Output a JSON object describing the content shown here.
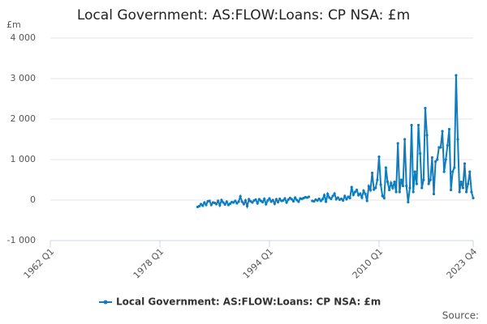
{
  "chart_data": {
    "type": "line",
    "title": "Local Government: AS:FLOW:Loans: CP NSA: £m",
    "y_unit": "£m",
    "source": "Source:",
    "categories": [
      "1983 Q3",
      "1983 Q4",
      "1984 Q1",
      "1984 Q2",
      "1984 Q3",
      "1984 Q4",
      "1985 Q1",
      "1985 Q2",
      "1985 Q3",
      "1985 Q4",
      "1986 Q1",
      "1986 Q2",
      "1986 Q3",
      "1986 Q4",
      "1987 Q1",
      "1987 Q2",
      "1987 Q3",
      "1987 Q4",
      "1988 Q1",
      "1988 Q2",
      "1988 Q3",
      "1988 Q4",
      "1989 Q1",
      "1989 Q2",
      "1989 Q3",
      "1989 Q4",
      "1990 Q1",
      "1990 Q2",
      "1990 Q3",
      "1990 Q4",
      "1991 Q1",
      "1991 Q2",
      "1991 Q3",
      "1991 Q4",
      "1992 Q1",
      "1992 Q2",
      "1992 Q3",
      "1992 Q4",
      "1993 Q1",
      "1993 Q2",
      "1993 Q3",
      "1993 Q4",
      "1994 Q1",
      "1994 Q2",
      "1994 Q3",
      "1994 Q4",
      "1995 Q1",
      "1995 Q2",
      "1995 Q3",
      "1995 Q4",
      "1996 Q1",
      "1996 Q2",
      "1996 Q3",
      "1996 Q4",
      "1997 Q1",
      "1997 Q2",
      "1997 Q3",
      "1997 Q4",
      "1998 Q1",
      "1998 Q2",
      "1998 Q3",
      "1998 Q4",
      "1999 Q1",
      "1999 Q2",
      "1999 Q3",
      "1999 Q4",
      "2000 Q1",
      "2000 Q2",
      "2000 Q3",
      "2000 Q4",
      "2001 Q1",
      "2001 Q2",
      "2001 Q3",
      "2001 Q4",
      "2002 Q1",
      "2002 Q2",
      "2002 Q3",
      "2002 Q4",
      "2003 Q1",
      "2003 Q2",
      "2003 Q3",
      "2003 Q4",
      "2004 Q1",
      "2004 Q2",
      "2004 Q3",
      "2004 Q4",
      "2005 Q1",
      "2005 Q2",
      "2005 Q3",
      "2005 Q4",
      "2006 Q1",
      "2006 Q2",
      "2006 Q3",
      "2006 Q4",
      "2007 Q1",
      "2007 Q2",
      "2007 Q3",
      "2007 Q4",
      "2008 Q1",
      "2008 Q2",
      "2008 Q3",
      "2008 Q4",
      "2009 Q1",
      "2009 Q2",
      "2009 Q3",
      "2009 Q4",
      "2010 Q1",
      "2010 Q2",
      "2010 Q3",
      "2010 Q4",
      "2011 Q1",
      "2011 Q2",
      "2011 Q3",
      "2011 Q4",
      "2012 Q1",
      "2012 Q2",
      "2012 Q3",
      "2012 Q4",
      "2013 Q1",
      "2013 Q2",
      "2013 Q3",
      "2013 Q4",
      "2014 Q1",
      "2014 Q2",
      "2014 Q3",
      "2014 Q4",
      "2015 Q1",
      "2015 Q2",
      "2015 Q3",
      "2015 Q4",
      "2016 Q1",
      "2016 Q2",
      "2016 Q3",
      "2016 Q4",
      "2017 Q1",
      "2017 Q2",
      "2017 Q3",
      "2017 Q4",
      "2018 Q1",
      "2018 Q2",
      "2018 Q3",
      "2018 Q4",
      "2019 Q1",
      "2019 Q2",
      "2019 Q3",
      "2019 Q4",
      "2020 Q1",
      "2020 Q2",
      "2020 Q3",
      "2020 Q4",
      "2021 Q1",
      "2021 Q2",
      "2021 Q3",
      "2021 Q4",
      "2022 Q1",
      "2022 Q2",
      "2022 Q3",
      "2022 Q4",
      "2023 Q1",
      "2023 Q2",
      "2023 Q3",
      "2023 Q4"
    ],
    "series": [
      {
        "name": "Local Government: AS:FLOW:Loans: CP NSA: £m",
        "color": "#0f7cbf",
        "values": [
          -170,
          -150,
          -100,
          -140,
          -60,
          -120,
          -30,
          -20,
          -120,
          -60,
          -70,
          -100,
          -20,
          -130,
          0,
          -60,
          -110,
          -40,
          -120,
          -90,
          -50,
          -60,
          -20,
          -80,
          -40,
          90,
          -40,
          -100,
          -10,
          -150,
          20,
          -30,
          -60,
          -10,
          10,
          -80,
          20,
          -20,
          -50,
          30,
          -100,
          -10,
          40,
          -40,
          0,
          -90,
          20,
          -50,
          30,
          -20,
          -10,
          40,
          -60,
          10,
          50,
          20,
          -30,
          60,
          0,
          -40,
          40,
          30,
          50,
          70,
          60,
          80,
          null,
          -20,
          -30,
          10,
          -10,
          30,
          -20,
          20,
          120,
          -40,
          150,
          60,
          30,
          100,
          160,
          20,
          60,
          10,
          30,
          -10,
          100,
          20,
          80,
          50,
          320,
          130,
          200,
          250,
          120,
          160,
          60,
          230,
          150,
          -20,
          340,
          250,
          670,
          260,
          300,
          500,
          1070,
          380,
          100,
          50,
          800,
          450,
          250,
          420,
          300,
          450,
          200,
          1400,
          200,
          500,
          350,
          1500,
          350,
          -50,
          300,
          1850,
          200,
          700,
          400,
          1850,
          1150,
          300,
          500,
          2270,
          1600,
          400,
          500,
          1050,
          150,
          950,
          1000,
          1300,
          1300,
          1700,
          700,
          1000,
          1350,
          1750,
          250,
          700,
          800,
          3080,
          1500,
          200,
          450,
          300,
          900,
          200,
          400,
          700,
          200,
          50
        ]
      }
    ],
    "xlim": [
      "1962 Q1",
      "2023 Q4"
    ],
    "xticks": [
      "1962 Q1",
      "1978 Q1",
      "1994 Q1",
      "2010 Q1",
      "2023 Q4"
    ],
    "ylim": [
      -1000,
      4000
    ],
    "yticks": [
      {
        "value": -1000,
        "label": "-1 000"
      },
      0,
      {
        "value": 1000,
        "label": "1 000"
      },
      {
        "value": 2000,
        "label": "2 000"
      },
      {
        "value": 3000,
        "label": "3 000"
      },
      {
        "value": 4000,
        "label": "4 000"
      }
    ],
    "grid": true,
    "legend": "bottom"
  }
}
